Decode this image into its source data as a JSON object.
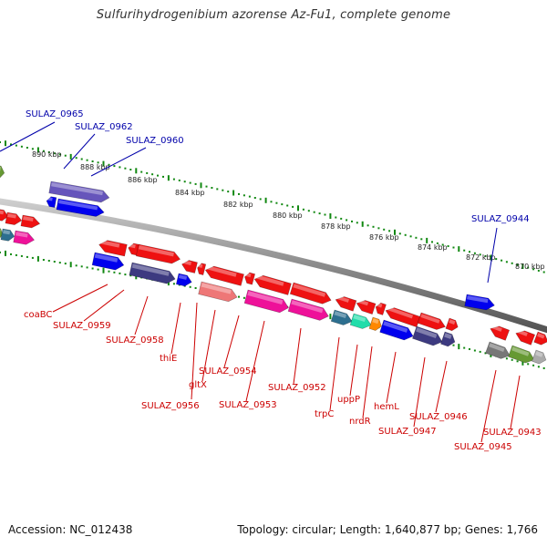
{
  "title": "Sulfurihydrogenibium azorense Az-Fu1, complete genome",
  "footer": {
    "accession": "Accession: NC_012438",
    "summary": "Topology: circular; Length: 1,640,877 bp; Genes: 1,766"
  },
  "scale_labels": [
    "890 kbp",
    "888 kbp",
    "886 kbp",
    "884 kbp",
    "882 kbp",
    "880 kbp",
    "878 kbp",
    "876 kbp",
    "874 kbp",
    "872 kbp",
    "870 kbp"
  ],
  "top_gene_labels": [
    "SULAZ_0965",
    "SULAZ_0962",
    "SULAZ_0960",
    "SULAZ_0944"
  ],
  "bottom_gene_labels": [
    "coaBC",
    "SULAZ_0959",
    "SULAZ_0958",
    "thiE",
    "SULAZ_0956",
    "gltX",
    "SULAZ_0954",
    "SULAZ_0953",
    "SULAZ_0952",
    "trpC",
    "uppP",
    "nrdR",
    "hemL",
    "SULAZ_0947",
    "SULAZ_0946",
    "SULAZ_0945",
    "SULAZ_0943"
  ],
  "colors": {
    "red": "#ee1111",
    "blue": "#0000ee",
    "purple": "#6655bb",
    "dark_purple": "#3d3a80",
    "pink": "#ee1199",
    "salmon": "#ee7777",
    "teal": "#2d6f8f",
    "aqua": "#22ddaa",
    "orange": "#ff8800",
    "grey": "#777777",
    "olive": "#669933",
    "label_blue": "#0000aa",
    "label_red": "#cc0000",
    "tick_green": "#118811"
  }
}
